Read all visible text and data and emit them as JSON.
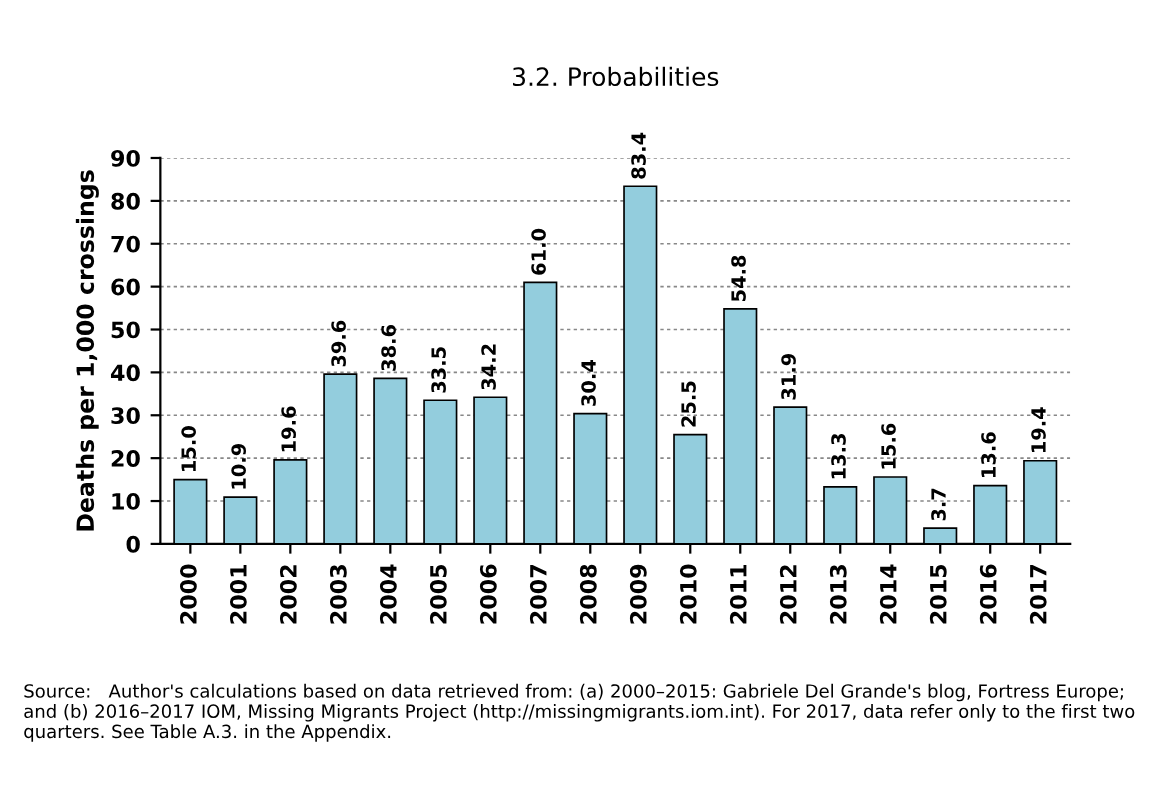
{
  "chart_data": {
    "type": "bar",
    "title": "3.2. Probabilities",
    "ylabel": "Deaths per 1,000 crossings",
    "categories": [
      "2000",
      "2001",
      "2002",
      "2003",
      "2004",
      "2005",
      "2006",
      "2007",
      "2008",
      "2009",
      "2010",
      "2011",
      "2012",
      "2013",
      "2014",
      "2015",
      "2016",
      "2017"
    ],
    "values": [
      15.0,
      10.9,
      19.6,
      39.6,
      38.6,
      33.5,
      34.2,
      61.0,
      30.4,
      83.4,
      25.5,
      54.8,
      31.9,
      13.3,
      15.6,
      3.7,
      13.6,
      19.4
    ],
    "value_labels": [
      "15.0",
      "10.9",
      "19.6",
      "39.6",
      "38.6",
      "33.5",
      "34.2",
      "61.0",
      "30.4",
      "83.4",
      "25.5",
      "54.8",
      "31.9",
      "13.3",
      "15.6",
      "3.7",
      "13.6",
      "19.4"
    ],
    "color": "#93cddd",
    "ylim": [
      0,
      90
    ],
    "yticks": [
      0,
      10,
      20,
      30,
      40,
      50,
      60,
      70,
      80,
      90
    ],
    "grid": "y",
    "annotations": [
      "Source:   Author's calculations based on data retrieved from: (a) 2000–2015: Gabriele Del Grande's blog, Fortress Europe; and (b) 2016–2017 IOM, Missing Migrants Project (http://missingmigrants.iom.int). For 2017, data refer only to the first two quarters. See Table A.3. in the Appendix."
    ]
  }
}
